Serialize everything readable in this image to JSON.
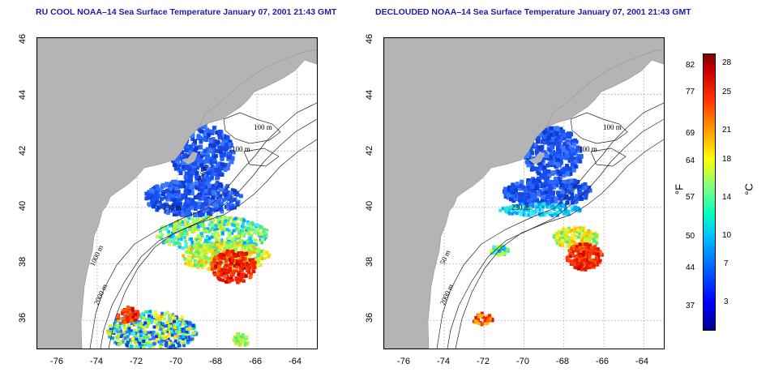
{
  "left_panel": {
    "title": "RU COOL NOAA–14 Sea Surface Temperature January 07, 2001 21:43 GMT",
    "contour_labels": [
      "100 m",
      "100 m",
      "250 m",
      "230 m",
      "1000 m",
      "2000 m"
    ]
  },
  "right_panel": {
    "title": "DECLOUDED NOAA–14 Sea Surface Temperature January 07, 2001 21:43 GMT",
    "contour_labels": [
      "100 m",
      "100 m",
      "230 m",
      "50 m",
      "2000 m"
    ]
  },
  "axes": {
    "lat_ticks": [
      "36",
      "38",
      "40",
      "42",
      "44",
      "46"
    ],
    "lon_ticks": [
      "-76",
      "-74",
      "-72",
      "-70",
      "-68",
      "-66",
      "-64"
    ],
    "lat_range": [
      35,
      46
    ],
    "lon_range": [
      -77,
      -63
    ]
  },
  "colorbar": {
    "fahrenheit_ticks": [
      "37",
      "44",
      "50",
      "57",
      "64",
      "69",
      "77",
      "82"
    ],
    "celsius_ticks": [
      "3",
      "7",
      "10",
      "14",
      "18",
      "21",
      "25",
      "28"
    ],
    "fahrenheit_unit": "°F",
    "celsius_unit": "°C",
    "colors": [
      "#00008b",
      "#0000ff",
      "#00c0ff",
      "#7fff7f",
      "#ffff00",
      "#ffa000",
      "#ff3000",
      "#800000"
    ]
  },
  "colors": {
    "land": "#b4b4b4",
    "title": "#1c1ca8",
    "grid": "#aaaaaa"
  }
}
